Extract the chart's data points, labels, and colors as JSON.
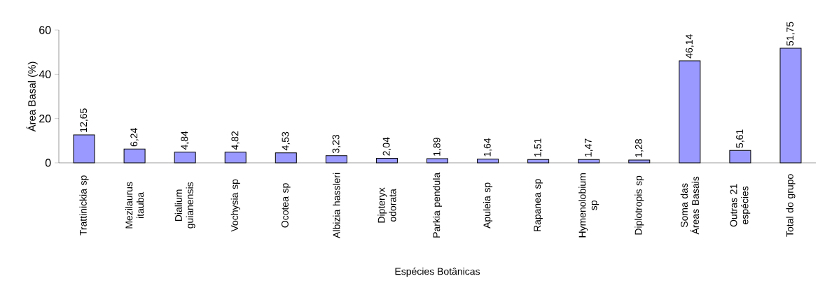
{
  "chart_data": {
    "type": "bar",
    "xlabel": "Espécies Botânicas",
    "ylabel": "Área Basal (%)",
    "categories": [
      "Trattinickia sp",
      "Mezilaurus itauba",
      "Dialium guianensis",
      "Vochysia sp",
      "Ocotea sp",
      "Albizia hassleri",
      "Dipteryx odorata",
      "Parkia pendula",
      "Apuleia sp",
      "Rapanea sp",
      "Hymenolobium sp",
      "Diplotropis sp",
      "Soma das Áreas Basais",
      "Outras 21 espécies",
      "Total do grupo"
    ],
    "values": [
      12.65,
      6.24,
      4.84,
      4.82,
      4.53,
      3.23,
      2.04,
      1.89,
      1.64,
      1.51,
      1.47,
      1.28,
      46.14,
      5.61,
      51.75
    ],
    "value_labels": [
      "12,65",
      "6,24",
      "4,84",
      "4,82",
      "4,53",
      "3,23",
      "2,04",
      "1,89",
      "1,64",
      "1,51",
      "1,47",
      "1,28",
      "46,14",
      "5,61",
      "51,75"
    ],
    "color": "#9999ff",
    "ylim": [
      0,
      60
    ],
    "yticks": [
      0,
      20,
      40,
      60
    ]
  }
}
